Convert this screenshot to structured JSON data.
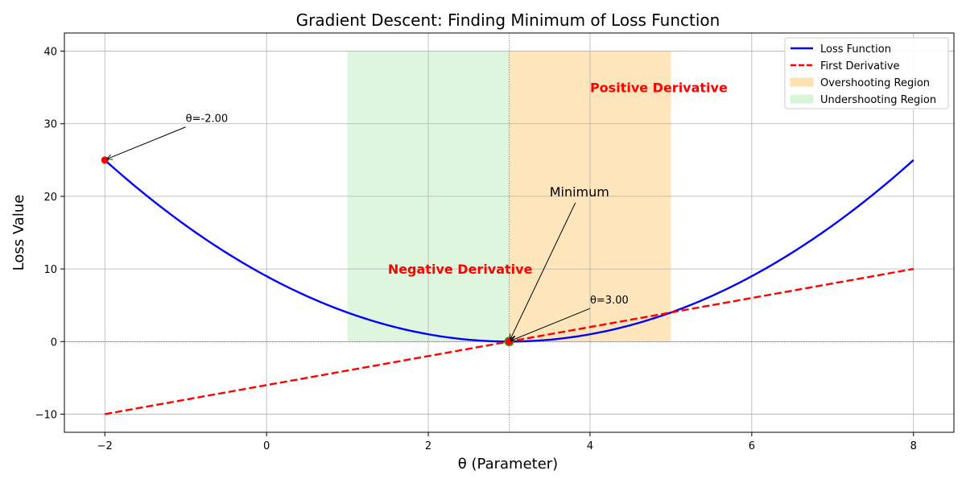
{
  "chart_data": {
    "type": "line",
    "title": "Gradient Descent: Finding Minimum of Loss Function",
    "xlabel": "θ (Parameter)",
    "ylabel": "Loss Value",
    "xlim": [
      -2.5,
      8.5
    ],
    "ylim": [
      -12.5,
      42.5
    ],
    "xticks": [
      -2,
      0,
      2,
      4,
      6,
      8
    ],
    "yticks": [
      -10,
      0,
      10,
      20,
      30,
      40
    ],
    "grid": true,
    "legend_position": "top-right",
    "series": [
      {
        "name": "Loss Function",
        "function": "(θ-3)^2",
        "x_range": [
          -2,
          8
        ],
        "color": "#0000ff",
        "style": "solid"
      },
      {
        "name": "First Derivative",
        "function": "2(θ-3)",
        "x_range": [
          -2,
          8
        ],
        "color": "#ff0000",
        "style": "dashed"
      }
    ],
    "regions": [
      {
        "name": "Overshooting Region",
        "x": [
          3,
          5
        ],
        "y": [
          0,
          40
        ],
        "color": "#ffe0b0"
      },
      {
        "name": "Undershooting Region",
        "x": [
          1,
          3
        ],
        "y": [
          0,
          40
        ],
        "color": "#d8f5d8"
      }
    ],
    "points": [
      {
        "x": -2,
        "y": 25,
        "color": "#ff0000",
        "label": "θ=-2.00",
        "label_at": [
          -1,
          30
        ]
      },
      {
        "x": 3,
        "y": 0,
        "color": "#ff0000",
        "label": "θ=3.00",
        "label_at": [
          4,
          5
        ]
      }
    ],
    "minimum": {
      "x": 3,
      "y": 0,
      "label": "Minimum",
      "label_at": [
        3.5,
        20
      ],
      "color": "#2ca02c"
    },
    "region_labels": [
      {
        "text": "Positive Derivative",
        "x": 4,
        "y": 35,
        "color": "#ff0000"
      },
      {
        "text": "Negative Derivative",
        "x": 1.5,
        "y": 10,
        "color": "#ff0000"
      }
    ],
    "reference_lines": {
      "horizontal_y": 0,
      "vertical_x": 3
    }
  }
}
